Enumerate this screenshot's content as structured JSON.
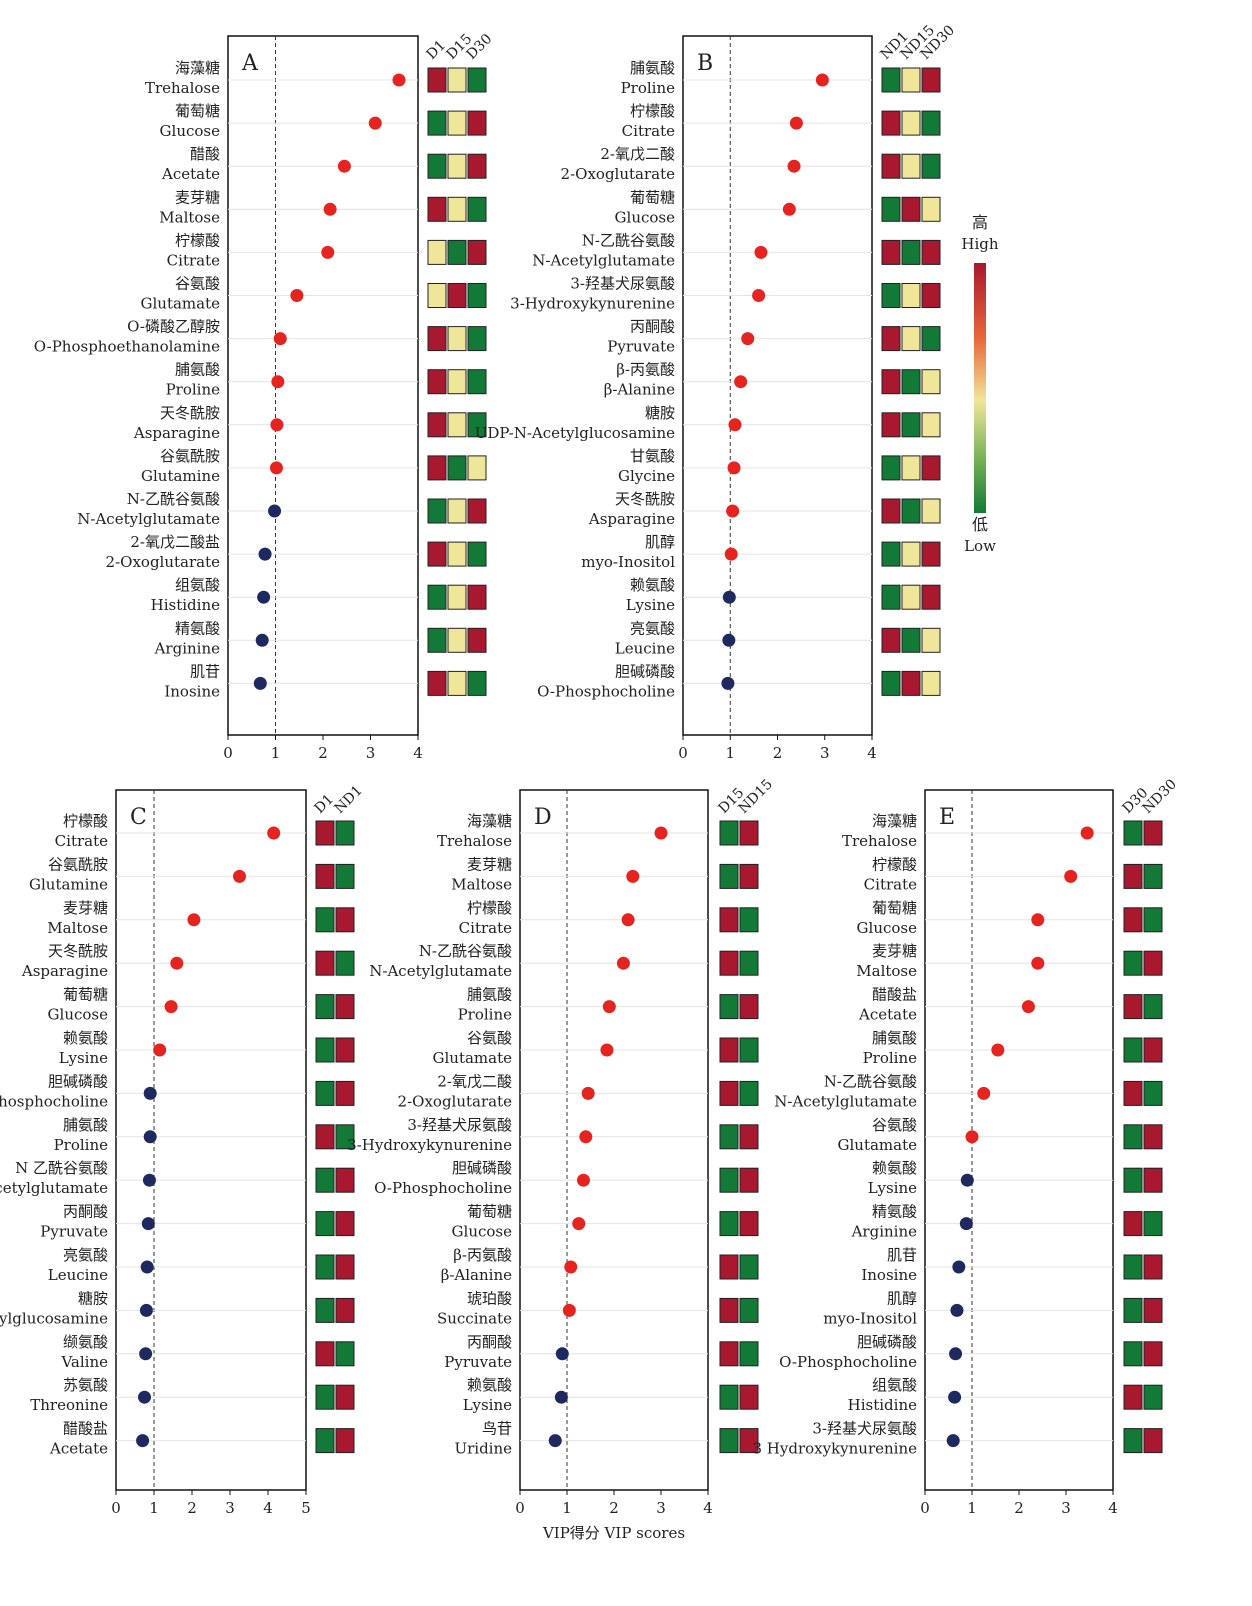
{
  "colors": {
    "high": "#a8182e",
    "mid": "#efe69a",
    "low": "#127a36",
    "vip_high": "#e52420",
    "vip_low": "#1e2960"
  },
  "chart_data": [
    {
      "panel": "A",
      "type": "scatter",
      "xlim": [
        0,
        4
      ],
      "xticks": [
        "0",
        "1",
        "2",
        "3",
        "4"
      ],
      "threshold": 1,
      "heat_cols": [
        "D1",
        "D15",
        "D30"
      ],
      "items": [
        {
          "cn": "海藻糖",
          "en": "Trehalose",
          "vip": 3.6,
          "heat": [
            "high",
            "mid",
            "low"
          ]
        },
        {
          "cn": "葡萄糖",
          "en": "Glucose",
          "vip": 3.1,
          "heat": [
            "low",
            "mid",
            "high"
          ]
        },
        {
          "cn": "醋酸",
          "en": "Acetate",
          "vip": 2.45,
          "heat": [
            "low",
            "mid",
            "high"
          ]
        },
        {
          "cn": "麦芽糖",
          "en": "Maltose",
          "vip": 2.15,
          "heat": [
            "high",
            "mid",
            "low"
          ]
        },
        {
          "cn": "柠檬酸",
          "en": "Citrate",
          "vip": 2.1,
          "heat": [
            "mid",
            "low",
            "high"
          ]
        },
        {
          "cn": "谷氨酸",
          "en": "Glutamate",
          "vip": 1.45,
          "heat": [
            "mid",
            "high",
            "low"
          ]
        },
        {
          "cn": "O-磷酸乙醇胺",
          "en": "O-Phosphoethanolamine",
          "vip": 1.1,
          "heat": [
            "high",
            "mid",
            "low"
          ]
        },
        {
          "cn": "脯氨酸",
          "en": "Proline",
          "vip": 1.05,
          "heat": [
            "high",
            "mid",
            "low"
          ]
        },
        {
          "cn": "天冬酰胺",
          "en": "Asparagine",
          "vip": 1.03,
          "heat": [
            "high",
            "mid",
            "low"
          ]
        },
        {
          "cn": "谷氨酰胺",
          "en": "Glutamine",
          "vip": 1.02,
          "heat": [
            "high",
            "low",
            "mid"
          ]
        },
        {
          "cn": "N-乙酰谷氨酸",
          "en": "N-Acetylglutamate",
          "vip": 0.98,
          "heat": [
            "low",
            "mid",
            "high"
          ]
        },
        {
          "cn": "2-氧戊二酸盐",
          "en": "2-Oxoglutarate",
          "vip": 0.78,
          "heat": [
            "high",
            "mid",
            "low"
          ]
        },
        {
          "cn": "组氨酸",
          "en": "Histidine",
          "vip": 0.75,
          "heat": [
            "low",
            "mid",
            "high"
          ]
        },
        {
          "cn": "精氨酸",
          "en": "Arginine",
          "vip": 0.72,
          "heat": [
            "low",
            "mid",
            "high"
          ]
        },
        {
          "cn": "肌苷",
          "en": "Inosine",
          "vip": 0.68,
          "heat": [
            "high",
            "mid",
            "low"
          ]
        }
      ]
    },
    {
      "panel": "B",
      "type": "scatter",
      "xlim": [
        0,
        4
      ],
      "xticks": [
        "0",
        "1",
        "2",
        "3",
        "4"
      ],
      "threshold": 1,
      "heat_cols": [
        "ND1",
        "ND15",
        "ND30"
      ],
      "items": [
        {
          "cn": "脯氨酸",
          "en": "Proline",
          "vip": 2.95,
          "heat": [
            "low",
            "mid",
            "high"
          ]
        },
        {
          "cn": "柠檬酸",
          "en": "Citrate",
          "vip": 2.4,
          "heat": [
            "high",
            "mid",
            "low"
          ]
        },
        {
          "cn": "2-氧戊二酸",
          "en": "2-Oxoglutarate",
          "vip": 2.35,
          "heat": [
            "high",
            "mid",
            "low"
          ]
        },
        {
          "cn": "葡萄糖",
          "en": "Glucose",
          "vip": 2.25,
          "heat": [
            "low",
            "high",
            "mid"
          ]
        },
        {
          "cn": "N-乙酰谷氨酸",
          "en": "N-Acetylglutamate",
          "vip": 1.65,
          "heat": [
            "high",
            "low",
            "high"
          ]
        },
        {
          "cn": "3-羟基犬尿氨酸",
          "en": "3-Hydroxykynurenine",
          "vip": 1.6,
          "heat": [
            "low",
            "mid",
            "high"
          ]
        },
        {
          "cn": "丙酮酸",
          "en": "Pyruvate",
          "vip": 1.37,
          "heat": [
            "high",
            "mid",
            "low"
          ]
        },
        {
          "cn": "β-丙氨酸",
          "en": "β-Alanine",
          "vip": 1.22,
          "heat": [
            "high",
            "low",
            "mid"
          ]
        },
        {
          "cn": "糖胺",
          "en": "UDP-N-Acetylglucosamine",
          "vip": 1.1,
          "heat": [
            "high",
            "low",
            "mid"
          ]
        },
        {
          "cn": "甘氨酸",
          "en": "Glycine",
          "vip": 1.08,
          "heat": [
            "low",
            "mid",
            "high"
          ]
        },
        {
          "cn": "天冬酰胺",
          "en": "Asparagine",
          "vip": 1.05,
          "heat": [
            "high",
            "low",
            "mid"
          ]
        },
        {
          "cn": "肌醇",
          "en": "myo-Inositol",
          "vip": 1.02,
          "heat": [
            "low",
            "mid",
            "high"
          ]
        },
        {
          "cn": "赖氨酸",
          "en": "Lysine",
          "vip": 0.98,
          "heat": [
            "low",
            "mid",
            "high"
          ]
        },
        {
          "cn": "亮氨酸",
          "en": "Leucine",
          "vip": 0.97,
          "heat": [
            "high",
            "low",
            "mid"
          ]
        },
        {
          "cn": "胆碱磷酸",
          "en": "O-Phosphocholine",
          "vip": 0.95,
          "heat": [
            "low",
            "high",
            "mid"
          ]
        }
      ]
    },
    {
      "panel": "C",
      "type": "scatter",
      "xlim": [
        0,
        5
      ],
      "xticks": [
        "0",
        "1",
        "2",
        "3",
        "4",
        "5"
      ],
      "threshold": 1,
      "heat_cols": [
        "D1",
        "ND1"
      ],
      "items": [
        {
          "cn": "柠檬酸",
          "en": "Citrate",
          "vip": 4.15,
          "heat": [
            "high",
            "low"
          ]
        },
        {
          "cn": "谷氨酰胺",
          "en": "Glutamine",
          "vip": 3.25,
          "heat": [
            "high",
            "low"
          ]
        },
        {
          "cn": "麦芽糖",
          "en": "Maltose",
          "vip": 2.05,
          "heat": [
            "low",
            "high"
          ]
        },
        {
          "cn": "天冬酰胺",
          "en": "Asparagine",
          "vip": 1.6,
          "heat": [
            "high",
            "low"
          ]
        },
        {
          "cn": "葡萄糖",
          "en": "Glucose",
          "vip": 1.45,
          "heat": [
            "low",
            "high"
          ]
        },
        {
          "cn": "赖氨酸",
          "en": "Lysine",
          "vip": 1.15,
          "heat": [
            "low",
            "high"
          ]
        },
        {
          "cn": "胆碱磷酸",
          "en": "O-Phosphocholine",
          "vip": 0.9,
          "heat": [
            "low",
            "high"
          ]
        },
        {
          "cn": "脯氨酸",
          "en": "Proline",
          "vip": 0.9,
          "heat": [
            "high",
            "low"
          ]
        },
        {
          "cn": "N 乙酰谷氨酸",
          "en": "N-Acetylglutamate",
          "vip": 0.88,
          "heat": [
            "low",
            "high"
          ]
        },
        {
          "cn": "丙酮酸",
          "en": "Pyruvate",
          "vip": 0.85,
          "heat": [
            "low",
            "high"
          ]
        },
        {
          "cn": "亮氨酸",
          "en": "Leucine",
          "vip": 0.82,
          "heat": [
            "low",
            "high"
          ]
        },
        {
          "cn": "糖胺",
          "en": "UDP-N-Acetylglucosamine",
          "vip": 0.8,
          "heat": [
            "low",
            "high"
          ]
        },
        {
          "cn": "缬氨酸",
          "en": "Valine",
          "vip": 0.78,
          "heat": [
            "high",
            "low"
          ]
        },
        {
          "cn": "苏氨酸",
          "en": "Threonine",
          "vip": 0.75,
          "heat": [
            "low",
            "high"
          ]
        },
        {
          "cn": "醋酸盐",
          "en": "Acetate",
          "vip": 0.7,
          "heat": [
            "low",
            "high"
          ]
        }
      ]
    },
    {
      "panel": "D",
      "type": "scatter",
      "xlim": [
        0,
        4
      ],
      "xticks": [
        "0",
        "1",
        "2",
        "3",
        "4"
      ],
      "threshold": 1,
      "heat_cols": [
        "D15",
        "ND15"
      ],
      "xlabel": "VIP得分 VIP scores",
      "items": [
        {
          "cn": "海藻糖",
          "en": "Trehalose",
          "vip": 3.0,
          "heat": [
            "low",
            "high"
          ]
        },
        {
          "cn": "麦芽糖",
          "en": "Maltose",
          "vip": 2.4,
          "heat": [
            "low",
            "high"
          ]
        },
        {
          "cn": "柠檬酸",
          "en": "Citrate",
          "vip": 2.3,
          "heat": [
            "high",
            "low"
          ]
        },
        {
          "cn": "N-乙酰谷氨酸",
          "en": "N-Acetylglutamate",
          "vip": 2.2,
          "heat": [
            "high",
            "low"
          ]
        },
        {
          "cn": "脯氨酸",
          "en": "Proline",
          "vip": 1.9,
          "heat": [
            "low",
            "high"
          ]
        },
        {
          "cn": "谷氨酸",
          "en": "Glutamate",
          "vip": 1.85,
          "heat": [
            "high",
            "low"
          ]
        },
        {
          "cn": "2-氧戊二酸",
          "en": "2-Oxoglutarate",
          "vip": 1.45,
          "heat": [
            "high",
            "low"
          ]
        },
        {
          "cn": "3-羟基犬尿氨酸",
          "en": "3-Hydroxykynurenine",
          "vip": 1.4,
          "heat": [
            "low",
            "high"
          ]
        },
        {
          "cn": "胆碱磷酸",
          "en": "O-Phosphocholine",
          "vip": 1.35,
          "heat": [
            "low",
            "high"
          ]
        },
        {
          "cn": "葡萄糖",
          "en": "Glucose",
          "vip": 1.25,
          "heat": [
            "low",
            "high"
          ]
        },
        {
          "cn": "β-丙氨酸",
          "en": "β-Alanine",
          "vip": 1.08,
          "heat": [
            "high",
            "low"
          ]
        },
        {
          "cn": "琥珀酸",
          "en": "Succinate",
          "vip": 1.05,
          "heat": [
            "high",
            "low"
          ]
        },
        {
          "cn": "丙酮酸",
          "en": "Pyruvate",
          "vip": 0.9,
          "heat": [
            "high",
            "low"
          ]
        },
        {
          "cn": "赖氨酸",
          "en": "Lysine",
          "vip": 0.88,
          "heat": [
            "low",
            "high"
          ]
        },
        {
          "cn": "鸟苷",
          "en": "Uridine",
          "vip": 0.75,
          "heat": [
            "low",
            "high"
          ]
        }
      ]
    },
    {
      "panel": "E",
      "type": "scatter",
      "xlim": [
        0,
        4
      ],
      "xticks": [
        "0",
        "1",
        "2",
        "3",
        "4"
      ],
      "threshold": 1,
      "heat_cols": [
        "D30",
        "ND30"
      ],
      "items": [
        {
          "cn": "海藻糖",
          "en": "Trehalose",
          "vip": 3.45,
          "heat": [
            "low",
            "high"
          ]
        },
        {
          "cn": "柠檬酸",
          "en": "Citrate",
          "vip": 3.1,
          "heat": [
            "high",
            "low"
          ]
        },
        {
          "cn": "葡萄糖",
          "en": "Glucose",
          "vip": 2.4,
          "heat": [
            "high",
            "low"
          ]
        },
        {
          "cn": "麦芽糖",
          "en": "Maltose",
          "vip": 2.4,
          "heat": [
            "low",
            "high"
          ]
        },
        {
          "cn": "醋酸盐",
          "en": "Acetate",
          "vip": 2.2,
          "heat": [
            "high",
            "low"
          ]
        },
        {
          "cn": "脯氨酸",
          "en": "Proline",
          "vip": 1.55,
          "heat": [
            "low",
            "high"
          ]
        },
        {
          "cn": "N-乙酰谷氨酸",
          "en": "N-Acetylglutamate",
          "vip": 1.25,
          "heat": [
            "high",
            "low"
          ]
        },
        {
          "cn": "谷氨酸",
          "en": "Glutamate",
          "vip": 1.0,
          "heat": [
            "low",
            "high"
          ]
        },
        {
          "cn": "赖氨酸",
          "en": "Lysine",
          "vip": 0.9,
          "heat": [
            "low",
            "high"
          ]
        },
        {
          "cn": "精氨酸",
          "en": "Arginine",
          "vip": 0.88,
          "heat": [
            "high",
            "low"
          ]
        },
        {
          "cn": "肌苷",
          "en": "Inosine",
          "vip": 0.72,
          "heat": [
            "low",
            "high"
          ]
        },
        {
          "cn": "肌醇",
          "en": "myo-Inositol",
          "vip": 0.68,
          "heat": [
            "low",
            "high"
          ]
        },
        {
          "cn": "胆碱磷酸",
          "en": "O-Phosphocholine",
          "vip": 0.65,
          "heat": [
            "low",
            "high"
          ]
        },
        {
          "cn": "组氨酸",
          "en": "Histidine",
          "vip": 0.63,
          "heat": [
            "high",
            "low"
          ]
        },
        {
          "cn": "3-羟基犬尿氨酸",
          "en": "3 Hydroxykynurenine",
          "vip": 0.6,
          "heat": [
            "low",
            "high"
          ]
        }
      ]
    }
  ],
  "legend": {
    "high_cn": "高",
    "high_en": "High",
    "low_cn": "低",
    "low_en": "Low"
  }
}
